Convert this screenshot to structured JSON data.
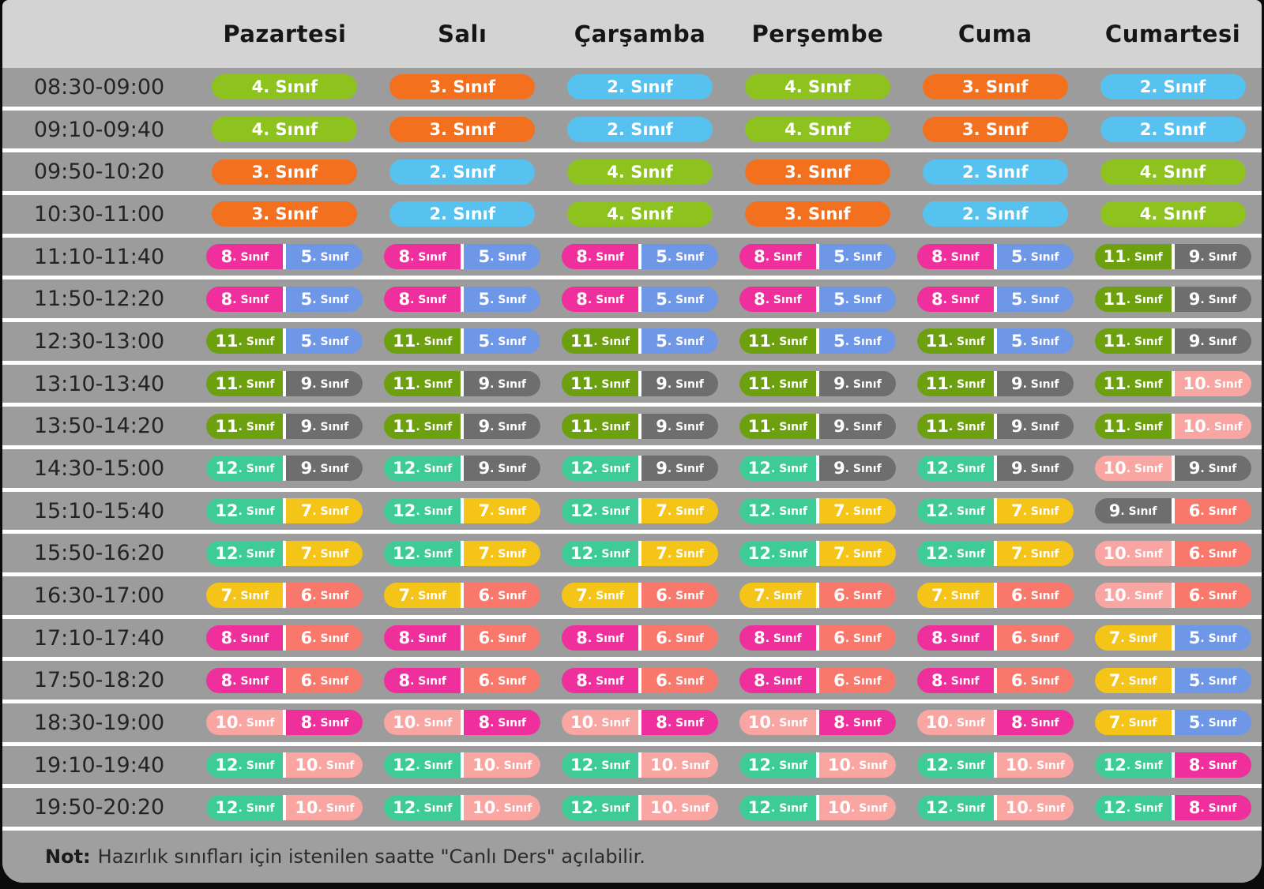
{
  "header": {
    "days": [
      "Pazartesi",
      "Salı",
      "Çarşamba",
      "Perşembe",
      "Cuma",
      "Cumartesi"
    ]
  },
  "pill_suffix": ". Sınıf",
  "grade_colors": {
    "2": "#57c2f0",
    "3": "#f3701e",
    "4": "#8ec31f",
    "5": "#6e97e8",
    "6": "#f8786c",
    "7": "#f5c419",
    "8": "#ef2f9b",
    "9": "#6e6e6e",
    "10": "#f9a5a1",
    "11": "#6da00f",
    "12": "#3fcb96"
  },
  "theme": {
    "page_bg": "#0b0b0b",
    "header_bg": "#d3d3d3",
    "row_bg": "#9c9c9c",
    "note_bg": "#9f9f9f",
    "separator": "#ffffff",
    "pill_text": "#ffffff"
  },
  "rows": [
    {
      "time": "08:30-09:00",
      "cells": [
        [
          "4"
        ],
        [
          "3"
        ],
        [
          "2"
        ],
        [
          "4"
        ],
        [
          "3"
        ],
        [
          "2"
        ]
      ]
    },
    {
      "time": "09:10-09:40",
      "cells": [
        [
          "4"
        ],
        [
          "3"
        ],
        [
          "2"
        ],
        [
          "4"
        ],
        [
          "3"
        ],
        [
          "2"
        ]
      ]
    },
    {
      "time": "09:50-10:20",
      "cells": [
        [
          "3"
        ],
        [
          "2"
        ],
        [
          "4"
        ],
        [
          "3"
        ],
        [
          "2"
        ],
        [
          "4"
        ]
      ]
    },
    {
      "time": "10:30-11:00",
      "cells": [
        [
          "3"
        ],
        [
          "2"
        ],
        [
          "4"
        ],
        [
          "3"
        ],
        [
          "2"
        ],
        [
          "4"
        ]
      ]
    },
    {
      "time": "11:10-11:40",
      "cells": [
        [
          "8",
          "5"
        ],
        [
          "8",
          "5"
        ],
        [
          "8",
          "5"
        ],
        [
          "8",
          "5"
        ],
        [
          "8",
          "5"
        ],
        [
          "11",
          "9"
        ]
      ]
    },
    {
      "time": "11:50-12:20",
      "cells": [
        [
          "8",
          "5"
        ],
        [
          "8",
          "5"
        ],
        [
          "8",
          "5"
        ],
        [
          "8",
          "5"
        ],
        [
          "8",
          "5"
        ],
        [
          "11",
          "9"
        ]
      ]
    },
    {
      "time": "12:30-13:00",
      "cells": [
        [
          "11",
          "5"
        ],
        [
          "11",
          "5"
        ],
        [
          "11",
          "5"
        ],
        [
          "11",
          "5"
        ],
        [
          "11",
          "5"
        ],
        [
          "11",
          "9"
        ]
      ]
    },
    {
      "time": "13:10-13:40",
      "cells": [
        [
          "11",
          "9"
        ],
        [
          "11",
          "9"
        ],
        [
          "11",
          "9"
        ],
        [
          "11",
          "9"
        ],
        [
          "11",
          "9"
        ],
        [
          "11",
          "10"
        ]
      ]
    },
    {
      "time": "13:50-14:20",
      "cells": [
        [
          "11",
          "9"
        ],
        [
          "11",
          "9"
        ],
        [
          "11",
          "9"
        ],
        [
          "11",
          "9"
        ],
        [
          "11",
          "9"
        ],
        [
          "11",
          "10"
        ]
      ]
    },
    {
      "time": "14:30-15:00",
      "cells": [
        [
          "12",
          "9"
        ],
        [
          "12",
          "9"
        ],
        [
          "12",
          "9"
        ],
        [
          "12",
          "9"
        ],
        [
          "12",
          "9"
        ],
        [
          "10",
          "9"
        ]
      ]
    },
    {
      "time": "15:10-15:40",
      "cells": [
        [
          "12",
          "7"
        ],
        [
          "12",
          "7"
        ],
        [
          "12",
          "7"
        ],
        [
          "12",
          "7"
        ],
        [
          "12",
          "7"
        ],
        [
          "9",
          "6"
        ]
      ]
    },
    {
      "time": "15:50-16:20",
      "cells": [
        [
          "12",
          "7"
        ],
        [
          "12",
          "7"
        ],
        [
          "12",
          "7"
        ],
        [
          "12",
          "7"
        ],
        [
          "12",
          "7"
        ],
        [
          "10",
          "6"
        ]
      ]
    },
    {
      "time": "16:30-17:00",
      "cells": [
        [
          "7",
          "6"
        ],
        [
          "7",
          "6"
        ],
        [
          "7",
          "6"
        ],
        [
          "7",
          "6"
        ],
        [
          "7",
          "6"
        ],
        [
          "10",
          "6"
        ]
      ]
    },
    {
      "time": "17:10-17:40",
      "cells": [
        [
          "8",
          "6"
        ],
        [
          "8",
          "6"
        ],
        [
          "8",
          "6"
        ],
        [
          "8",
          "6"
        ],
        [
          "8",
          "6"
        ],
        [
          "7",
          "5"
        ]
      ]
    },
    {
      "time": "17:50-18:20",
      "cells": [
        [
          "8",
          "6"
        ],
        [
          "8",
          "6"
        ],
        [
          "8",
          "6"
        ],
        [
          "8",
          "6"
        ],
        [
          "8",
          "6"
        ],
        [
          "7",
          "5"
        ]
      ]
    },
    {
      "time": "18:30-19:00",
      "cells": [
        [
          "10",
          "8"
        ],
        [
          "10",
          "8"
        ],
        [
          "10",
          "8"
        ],
        [
          "10",
          "8"
        ],
        [
          "10",
          "8"
        ],
        [
          "7",
          "5"
        ]
      ]
    },
    {
      "time": "19:10-19:40",
      "cells": [
        [
          "12",
          "10"
        ],
        [
          "12",
          "10"
        ],
        [
          "12",
          "10"
        ],
        [
          "12",
          "10"
        ],
        [
          "12",
          "10"
        ],
        [
          "12",
          "8"
        ]
      ]
    },
    {
      "time": "19:50-20:20",
      "cells": [
        [
          "12",
          "10"
        ],
        [
          "12",
          "10"
        ],
        [
          "12",
          "10"
        ],
        [
          "12",
          "10"
        ],
        [
          "12",
          "10"
        ],
        [
          "12",
          "8"
        ]
      ]
    }
  ],
  "note": {
    "label": "Not:",
    "text": "Hazırlık sınıfları için istenilen saatte \"Canlı Ders\" açılabilir."
  }
}
